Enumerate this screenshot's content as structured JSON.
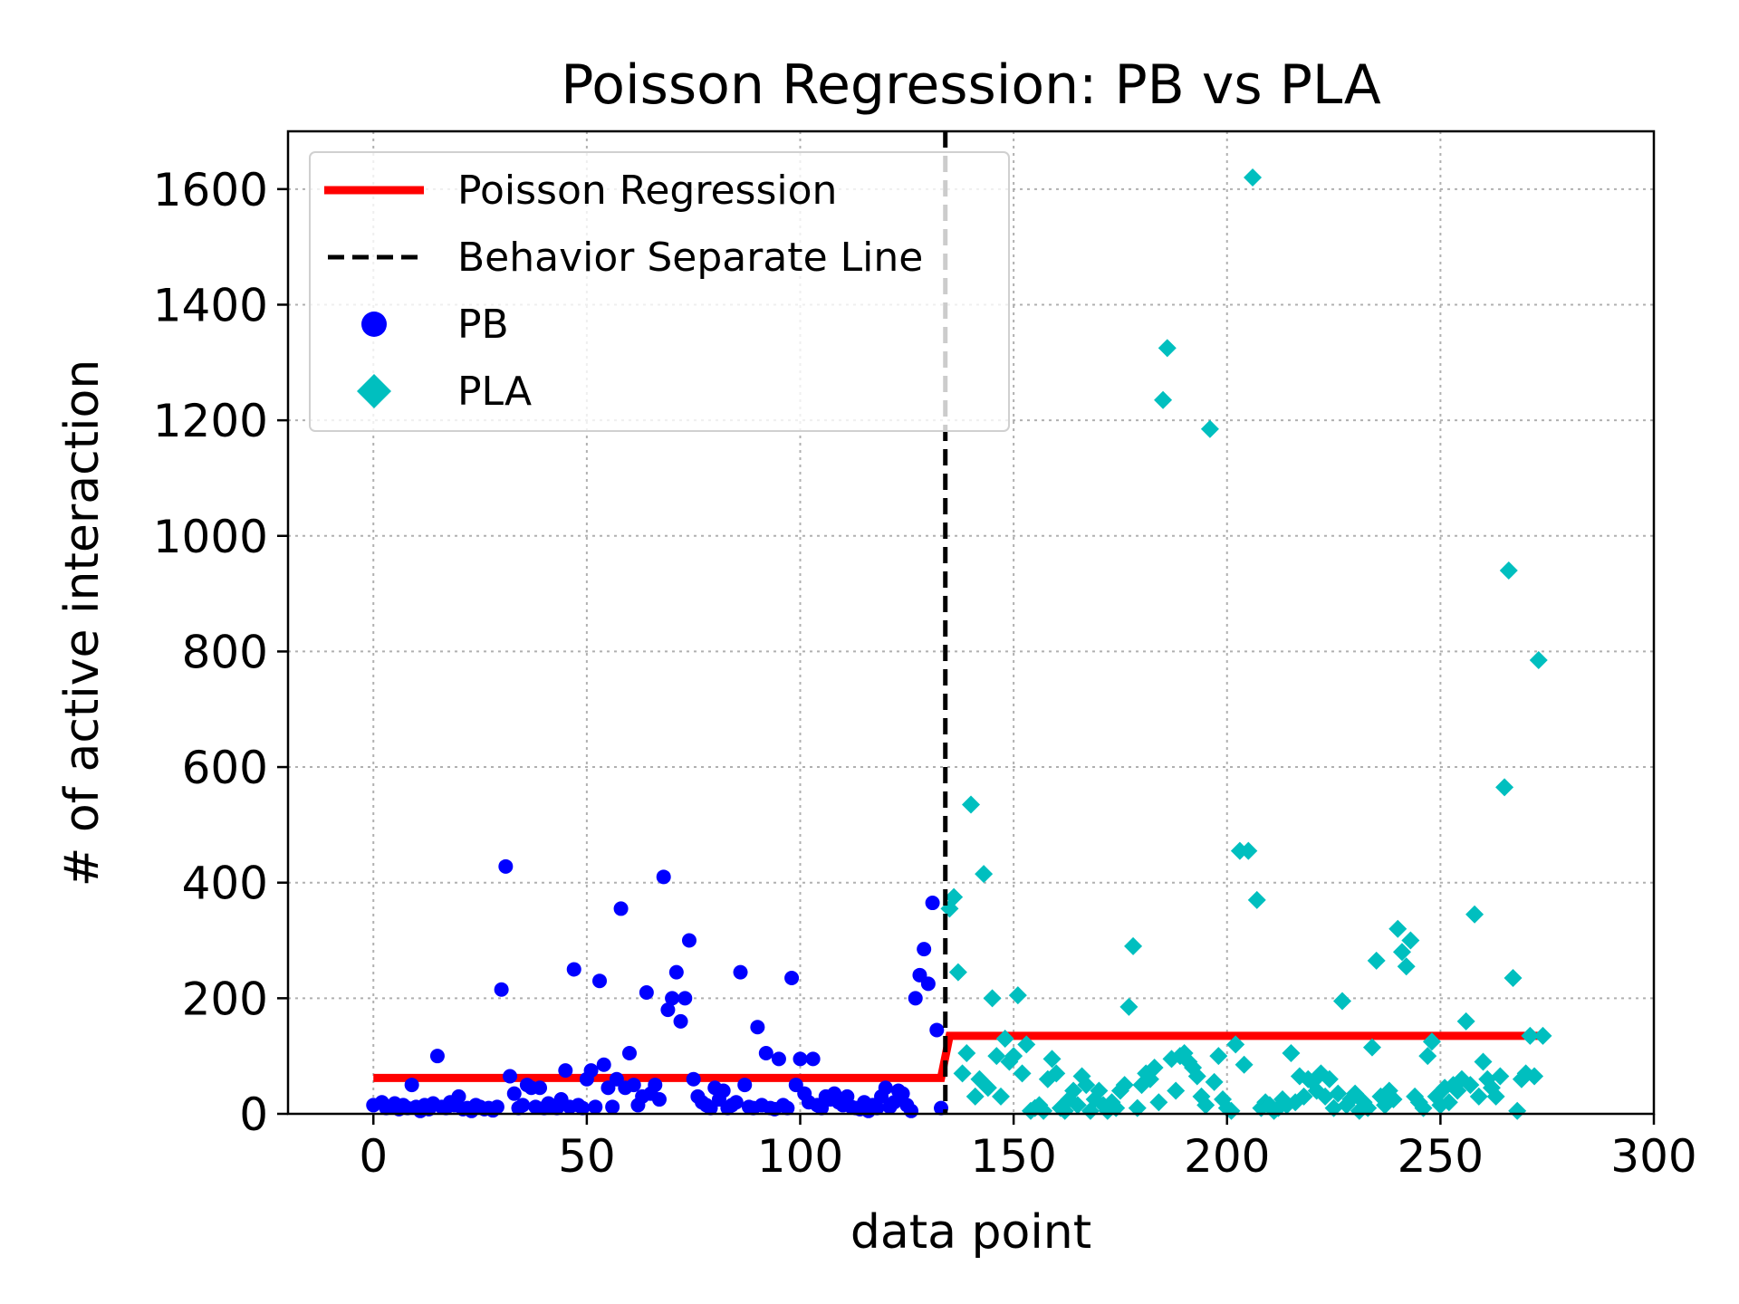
{
  "colors": {
    "pb": "#0000ff",
    "pla": "#00bfbf",
    "regression": "#ff0000",
    "separator": "#000000"
  },
  "chart_data": {
    "type": "scatter",
    "title": "Poisson Regression: PB vs PLA",
    "xlabel": "data point",
    "ylabel": "# of active interaction",
    "xlim": [
      -20,
      300
    ],
    "ylim": [
      0,
      1700
    ],
    "xticks": [
      0,
      50,
      100,
      150,
      200,
      250,
      300
    ],
    "yticks": [
      0,
      200,
      400,
      600,
      800,
      1000,
      1200,
      1400,
      1600
    ],
    "grid": true,
    "legend_position": "top-left",
    "legend": [
      {
        "key": "regression",
        "label": "Poisson Regression",
        "marker": "line"
      },
      {
        "key": "separator",
        "label": "Behavior Separate Line",
        "marker": "dashed-line"
      },
      {
        "key": "pb",
        "label": "PB",
        "marker": "circle"
      },
      {
        "key": "pla",
        "label": "PLA",
        "marker": "diamond"
      }
    ],
    "separator_x": 134,
    "regression": {
      "name": "Poisson Regression",
      "segments": [
        {
          "x0": 0,
          "x1": 133,
          "y": 62
        },
        {
          "x0": 135,
          "x1": 275,
          "y": 135
        }
      ]
    },
    "series": [
      {
        "name": "PB",
        "marker": "circle",
        "points": [
          [
            0,
            15
          ],
          [
            2,
            20
          ],
          [
            3,
            10
          ],
          [
            4,
            12
          ],
          [
            5,
            18
          ],
          [
            6,
            8
          ],
          [
            7,
            15
          ],
          [
            8,
            10
          ],
          [
            9,
            50
          ],
          [
            10,
            12
          ],
          [
            11,
            5
          ],
          [
            12,
            15
          ],
          [
            13,
            8
          ],
          [
            14,
            18
          ],
          [
            15,
            100
          ],
          [
            16,
            12
          ],
          [
            17,
            10
          ],
          [
            18,
            20
          ],
          [
            19,
            15
          ],
          [
            20,
            30
          ],
          [
            21,
            8
          ],
          [
            22,
            10
          ],
          [
            23,
            5
          ],
          [
            24,
            15
          ],
          [
            25,
            12
          ],
          [
            26,
            8
          ],
          [
            27,
            10
          ],
          [
            28,
            6
          ],
          [
            29,
            12
          ],
          [
            30,
            215
          ],
          [
            31,
            428
          ],
          [
            32,
            65
          ],
          [
            33,
            35
          ],
          [
            34,
            10
          ],
          [
            35,
            15
          ],
          [
            36,
            50
          ],
          [
            37,
            45
          ],
          [
            38,
            12
          ],
          [
            39,
            45
          ],
          [
            40,
            10
          ],
          [
            41,
            18
          ],
          [
            42,
            12
          ],
          [
            43,
            10
          ],
          [
            44,
            25
          ],
          [
            45,
            75
          ],
          [
            46,
            12
          ],
          [
            47,
            250
          ],
          [
            48,
            15
          ],
          [
            49,
            10
          ],
          [
            50,
            60
          ],
          [
            51,
            75
          ],
          [
            52,
            12
          ],
          [
            53,
            230
          ],
          [
            54,
            85
          ],
          [
            55,
            45
          ],
          [
            56,
            12
          ],
          [
            57,
            60
          ],
          [
            58,
            355
          ],
          [
            59,
            45
          ],
          [
            60,
            105
          ],
          [
            61,
            50
          ],
          [
            62,
            15
          ],
          [
            63,
            30
          ],
          [
            64,
            210
          ],
          [
            65,
            35
          ],
          [
            66,
            50
          ],
          [
            67,
            25
          ],
          [
            68,
            410
          ],
          [
            69,
            180
          ],
          [
            70,
            200
          ],
          [
            71,
            245
          ],
          [
            72,
            160
          ],
          [
            73,
            200
          ],
          [
            74,
            300
          ],
          [
            75,
            60
          ],
          [
            76,
            30
          ],
          [
            77,
            20
          ],
          [
            78,
            15
          ],
          [
            79,
            10
          ],
          [
            80,
            45
          ],
          [
            81,
            25
          ],
          [
            82,
            40
          ],
          [
            83,
            10
          ],
          [
            84,
            15
          ],
          [
            85,
            20
          ],
          [
            86,
            245
          ],
          [
            87,
            50
          ],
          [
            88,
            12
          ],
          [
            89,
            10
          ],
          [
            90,
            150
          ],
          [
            91,
            15
          ],
          [
            92,
            105
          ],
          [
            93,
            10
          ],
          [
            94,
            8
          ],
          [
            95,
            95
          ],
          [
            96,
            15
          ],
          [
            97,
            10
          ],
          [
            98,
            235
          ],
          [
            99,
            50
          ],
          [
            100,
            95
          ],
          [
            101,
            35
          ],
          [
            102,
            20
          ],
          [
            103,
            95
          ],
          [
            104,
            15
          ],
          [
            105,
            10
          ],
          [
            106,
            30
          ],
          [
            107,
            25
          ],
          [
            108,
            35
          ],
          [
            109,
            20
          ],
          [
            110,
            15
          ],
          [
            111,
            30
          ],
          [
            112,
            12
          ],
          [
            113,
            10
          ],
          [
            114,
            8
          ],
          [
            115,
            20
          ],
          [
            116,
            5
          ],
          [
            117,
            15
          ],
          [
            118,
            10
          ],
          [
            119,
            30
          ],
          [
            120,
            45
          ],
          [
            121,
            12
          ],
          [
            122,
            20
          ],
          [
            123,
            40
          ],
          [
            124,
            35
          ],
          [
            125,
            15
          ],
          [
            126,
            5
          ],
          [
            127,
            200
          ],
          [
            128,
            240
          ],
          [
            129,
            285
          ],
          [
            130,
            225
          ],
          [
            131,
            365
          ],
          [
            132,
            145
          ],
          [
            133,
            10
          ]
        ]
      },
      {
        "name": "PLA",
        "marker": "diamond",
        "points": [
          [
            135,
            355
          ],
          [
            136,
            375
          ],
          [
            137,
            245
          ],
          [
            138,
            70
          ],
          [
            139,
            105
          ],
          [
            140,
            535
          ],
          [
            141,
            30
          ],
          [
            142,
            60
          ],
          [
            143,
            415
          ],
          [
            144,
            45
          ],
          [
            145,
            200
          ],
          [
            146,
            100
          ],
          [
            147,
            30
          ],
          [
            148,
            130
          ],
          [
            149,
            90
          ],
          [
            150,
            100
          ],
          [
            151,
            205
          ],
          [
            152,
            70
          ],
          [
            153,
            120
          ],
          [
            154,
            5
          ],
          [
            155,
            10
          ],
          [
            156,
            15
          ],
          [
            157,
            5
          ],
          [
            158,
            60
          ],
          [
            159,
            95
          ],
          [
            160,
            70
          ],
          [
            161,
            10
          ],
          [
            162,
            5
          ],
          [
            163,
            25
          ],
          [
            164,
            40
          ],
          [
            165,
            15
          ],
          [
            166,
            65
          ],
          [
            167,
            50
          ],
          [
            168,
            5
          ],
          [
            169,
            25
          ],
          [
            170,
            40
          ],
          [
            171,
            15
          ],
          [
            172,
            5
          ],
          [
            173,
            20
          ],
          [
            174,
            10
          ],
          [
            175,
            40
          ],
          [
            176,
            50
          ],
          [
            177,
            185
          ],
          [
            178,
            290
          ],
          [
            179,
            10
          ],
          [
            180,
            50
          ],
          [
            181,
            70
          ],
          [
            182,
            60
          ],
          [
            183,
            80
          ],
          [
            184,
            20
          ],
          [
            185,
            1235
          ],
          [
            186,
            1325
          ],
          [
            187,
            95
          ],
          [
            188,
            40
          ],
          [
            189,
            100
          ],
          [
            190,
            105
          ],
          [
            191,
            90
          ],
          [
            192,
            80
          ],
          [
            193,
            65
          ],
          [
            194,
            30
          ],
          [
            195,
            15
          ],
          [
            196,
            1185
          ],
          [
            197,
            55
          ],
          [
            198,
            100
          ],
          [
            199,
            25
          ],
          [
            200,
            10
          ],
          [
            201,
            5
          ],
          [
            202,
            120
          ],
          [
            203,
            455
          ],
          [
            204,
            85
          ],
          [
            205,
            455
          ],
          [
            206,
            1620
          ],
          [
            207,
            370
          ],
          [
            208,
            10
          ],
          [
            209,
            20
          ],
          [
            210,
            15
          ],
          [
            211,
            5
          ],
          [
            212,
            10
          ],
          [
            213,
            25
          ],
          [
            214,
            15
          ],
          [
            215,
            105
          ],
          [
            216,
            20
          ],
          [
            217,
            65
          ],
          [
            218,
            30
          ],
          [
            219,
            60
          ],
          [
            220,
            55
          ],
          [
            221,
            40
          ],
          [
            222,
            70
          ],
          [
            223,
            30
          ],
          [
            224,
            60
          ],
          [
            225,
            10
          ],
          [
            226,
            35
          ],
          [
            227,
            195
          ],
          [
            228,
            15
          ],
          [
            229,
            25
          ],
          [
            230,
            35
          ],
          [
            231,
            5
          ],
          [
            232,
            20
          ],
          [
            233,
            10
          ],
          [
            234,
            115
          ],
          [
            235,
            265
          ],
          [
            236,
            30
          ],
          [
            237,
            15
          ],
          [
            238,
            40
          ],
          [
            239,
            25
          ],
          [
            240,
            320
          ],
          [
            241,
            280
          ],
          [
            242,
            255
          ],
          [
            243,
            300
          ],
          [
            244,
            30
          ],
          [
            245,
            20
          ],
          [
            246,
            10
          ],
          [
            247,
            100
          ],
          [
            248,
            125
          ],
          [
            249,
            30
          ],
          [
            250,
            15
          ],
          [
            251,
            45
          ],
          [
            252,
            20
          ],
          [
            253,
            50
          ],
          [
            254,
            40
          ],
          [
            255,
            60
          ],
          [
            256,
            160
          ],
          [
            257,
            50
          ],
          [
            258,
            345
          ],
          [
            259,
            30
          ],
          [
            260,
            90
          ],
          [
            261,
            60
          ],
          [
            262,
            45
          ],
          [
            263,
            30
          ],
          [
            264,
            65
          ],
          [
            265,
            565
          ],
          [
            266,
            940
          ],
          [
            267,
            235
          ],
          [
            268,
            5
          ],
          [
            269,
            60
          ],
          [
            270,
            70
          ],
          [
            271,
            135
          ],
          [
            272,
            65
          ],
          [
            273,
            785
          ],
          [
            274,
            135
          ]
        ]
      }
    ]
  }
}
